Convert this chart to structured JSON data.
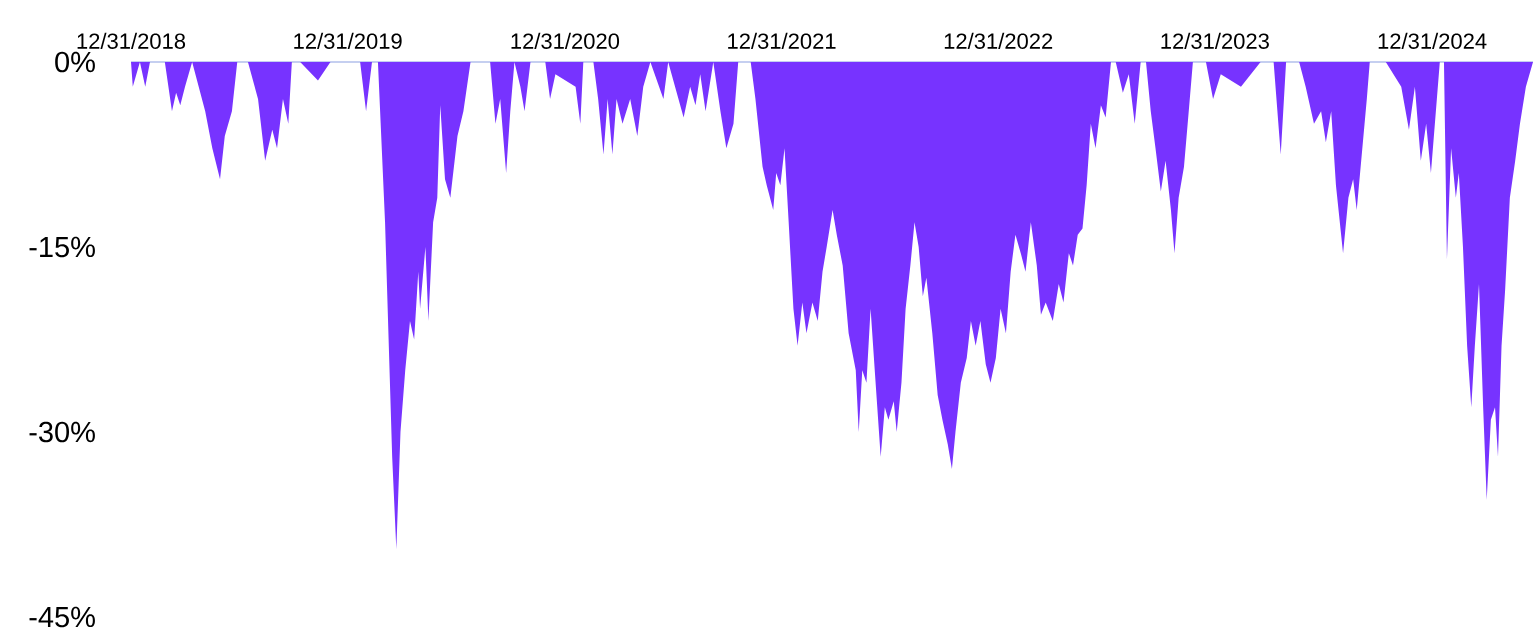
{
  "chart_data": {
    "type": "area",
    "color": "#7733ff",
    "xlim": [
      "2018-12-31",
      "2025-06-19"
    ],
    "ylim": [
      -45,
      0
    ],
    "xticks": [
      {
        "value": "2018-12-31",
        "label": "12/31/2018"
      },
      {
        "value": "2019-12-31",
        "label": "12/31/2019"
      },
      {
        "value": "2020-12-31",
        "label": "12/31/2020"
      },
      {
        "value": "2021-12-31",
        "label": "12/31/2021"
      },
      {
        "value": "2022-12-31",
        "label": "12/31/2022"
      },
      {
        "value": "2023-12-31",
        "label": "12/31/2023"
      },
      {
        "value": "2024-12-31",
        "label": "12/31/2024"
      }
    ],
    "yticks": [
      {
        "value": 0,
        "label": "0%"
      },
      {
        "value": -15,
        "label": "-15%"
      },
      {
        "value": -30,
        "label": "-30%"
      },
      {
        "value": -45,
        "label": "-45%"
      }
    ],
    "x": [
      "2018-12-31",
      "2019-01-03",
      "2019-01-15",
      "2019-01-24",
      "2019-02-01",
      "2019-02-26",
      "2019-03-10",
      "2019-03-17",
      "2019-03-24",
      "2019-04-01",
      "2019-04-13",
      "2019-05-05",
      "2019-05-17",
      "2019-05-30",
      "2019-06-07",
      "2019-06-19",
      "2019-06-28",
      "2019-07-16",
      "2019-08-02",
      "2019-08-14",
      "2019-08-26",
      "2019-09-03",
      "2019-09-13",
      "2019-09-22",
      "2019-09-28",
      "2019-10-12",
      "2019-11-11",
      "2019-12-02",
      "2020-01-21",
      "2020-01-31",
      "2020-02-10",
      "2020-02-20",
      "2020-03-03",
      "2020-03-15",
      "2020-03-22",
      "2020-03-29",
      "2020-04-06",
      "2020-04-14",
      "2020-04-21",
      "2020-04-28",
      "2020-05-01",
      "2020-05-10",
      "2020-05-15",
      "2020-05-23",
      "2020-05-30",
      "2020-06-04",
      "2020-06-12",
      "2020-06-21",
      "2020-07-03",
      "2020-07-13",
      "2020-07-25",
      "2020-08-27",
      "2020-09-05",
      "2020-09-13",
      "2020-09-23",
      "2020-09-30",
      "2020-10-07",
      "2020-10-17",
      "2020-10-24",
      "2020-11-03",
      "2020-11-28",
      "2020-12-06",
      "2020-12-15",
      "2021-01-18",
      "2021-01-26",
      "2021-01-31",
      "2021-02-17",
      "2021-02-25",
      "2021-03-06",
      "2021-03-13",
      "2021-03-21",
      "2021-03-28",
      "2021-04-07",
      "2021-04-20",
      "2021-05-02",
      "2021-05-12",
      "2021-05-24",
      "2021-06-15",
      "2021-06-23",
      "2021-07-19",
      "2021-07-30",
      "2021-08-08",
      "2021-08-16",
      "2021-08-25",
      "2021-09-07",
      "2021-09-19",
      "2021-09-29",
      "2021-10-11",
      "2021-10-19",
      "2021-11-09",
      "2021-11-17",
      "2021-11-29",
      "2021-12-06",
      "2021-12-17",
      "2021-12-22",
      "2021-12-29",
      "2022-01-05",
      "2022-01-12",
      "2022-01-20",
      "2022-01-27",
      "2022-02-04",
      "2022-02-11",
      "2022-02-21",
      "2022-03-02",
      "2022-03-10",
      "2022-03-17",
      "2022-03-27",
      "2022-04-03",
      "2022-04-13",
      "2022-04-23",
      "2022-05-05",
      "2022-05-10",
      "2022-05-16",
      "2022-05-23",
      "2022-05-30",
      "2022-06-06",
      "2022-06-16",
      "2022-06-23",
      "2022-06-29",
      "2022-07-08",
      "2022-07-13",
      "2022-07-21",
      "2022-07-28",
      "2022-08-05",
      "2022-08-12",
      "2022-08-19",
      "2022-08-26",
      "2022-09-01",
      "2022-09-11",
      "2022-09-20",
      "2022-09-28",
      "2022-10-07",
      "2022-10-14",
      "2022-10-20",
      "2022-10-29",
      "2022-11-08",
      "2022-11-15",
      "2022-11-23",
      "2022-12-01",
      "2022-12-10",
      "2022-12-18",
      "2022-12-27",
      "2023-01-04",
      "2023-01-13",
      "2023-01-21",
      "2023-01-29",
      "2023-02-07",
      "2023-02-15",
      "2023-02-24",
      "2023-03-06",
      "2023-03-13",
      "2023-03-21",
      "2023-04-02",
      "2023-04-12",
      "2023-04-20",
      "2023-04-29",
      "2023-05-06",
      "2023-05-14",
      "2023-05-22",
      "2023-05-29",
      "2023-06-05",
      "2023-06-13",
      "2023-06-22",
      "2023-06-30",
      "2023-07-09",
      "2023-07-17",
      "2023-07-29",
      "2023-08-08",
      "2023-08-18",
      "2023-08-28",
      "2023-09-06",
      "2023-09-14",
      "2023-09-22",
      "2023-10-01",
      "2023-10-09",
      "2023-10-18",
      "2023-10-24",
      "2023-10-31",
      "2023-11-09",
      "2023-11-17",
      "2023-11-24",
      "2023-12-16",
      "2023-12-28",
      "2024-01-10",
      "2024-02-13",
      "2024-03-17",
      "2024-04-08",
      "2024-04-20",
      "2024-04-29",
      "2024-05-21",
      "2024-06-01",
      "2024-06-15",
      "2024-06-27",
      "2024-07-05",
      "2024-07-14",
      "2024-07-22",
      "2024-08-03",
      "2024-08-12",
      "2024-08-20",
      "2024-08-26",
      "2024-09-12",
      "2024-09-17",
      "2024-10-14",
      "2024-11-09",
      "2024-11-22",
      "2024-12-02",
      "2024-12-12",
      "2024-12-21",
      "2024-12-29",
      "2025-01-08",
      "2025-01-13",
      "2025-01-20",
      "2025-01-25",
      "2025-02-01",
      "2025-02-09",
      "2025-02-14",
      "2025-02-21",
      "2025-02-28",
      "2025-03-07",
      "2025-03-13",
      "2025-03-20",
      "2025-03-27",
      "2025-04-02",
      "2025-04-09",
      "2025-04-16",
      "2025-04-21",
      "2025-04-27",
      "2025-05-03",
      "2025-05-11",
      "2025-05-20",
      "2025-05-28",
      "2025-06-07",
      "2025-06-19"
    ],
    "values": [
      0,
      -2,
      0,
      -2,
      0,
      0,
      -4,
      -2.5,
      -3.5,
      -2,
      0,
      -4,
      -7,
      -9.5,
      -6,
      -4,
      0,
      0,
      -3,
      -8,
      -5.5,
      -7,
      -3,
      -5,
      0,
      0,
      -1.5,
      0,
      0,
      -4,
      0,
      0,
      -13,
      -32,
      -39.5,
      -30,
      -25,
      -21,
      -22.5,
      -17,
      -20,
      -15,
      -21,
      -13,
      -11,
      -3.5,
      -9.5,
      -11,
      -6,
      -4,
      0,
      0,
      -5,
      -3,
      -9,
      -4,
      0,
      -2,
      -4,
      0,
      0,
      -3,
      -1,
      -2,
      -5,
      0,
      0,
      -3,
      -7.5,
      -3,
      -7.5,
      -3,
      -5,
      -3,
      -6,
      -2,
      0,
      -3,
      0,
      -4.5,
      -2,
      -3.5,
      -1,
      -4,
      0,
      -4,
      -7,
      -5,
      0,
      0,
      -3,
      -8.5,
      -10,
      -12,
      -9,
      -10,
      -7,
      -13,
      -20,
      -23,
      -19.5,
      -22,
      -19.5,
      -21,
      -17,
      -15,
      -12,
      -14,
      -16.5,
      -22,
      -25,
      -30,
      -25,
      -26,
      -20,
      -25,
      -32,
      -28,
      -29,
      -27.5,
      -30,
      -26,
      -20,
      -16.5,
      -13,
      -15,
      -19,
      -17.5,
      -22,
      -27,
      -29,
      -31,
      -33,
      -30,
      -26,
      -24,
      -21,
      -23,
      -21,
      -24.5,
      -26,
      -24,
      -20,
      -22,
      -17,
      -14,
      -15.5,
      -17,
      -13,
      -16.5,
      -20.5,
      -19.5,
      -21,
      -18,
      -19.5,
      -15.5,
      -16.5,
      -14,
      -13.5,
      -10,
      -5,
      -7,
      -3.5,
      -4.5,
      0,
      0,
      -2.5,
      -1,
      -5,
      0,
      0,
      -4,
      -7,
      -10.5,
      -8,
      -12,
      -15.5,
      -11,
      -8.5,
      -4,
      0,
      0,
      -3,
      -1,
      -2,
      0,
      0,
      -7.5,
      0,
      0,
      -2,
      -5,
      -4,
      -6.5,
      -4,
      -10,
      -15.5,
      -11,
      -9.5,
      -12,
      -3,
      0,
      0,
      -2,
      -5.5,
      -2,
      -8,
      -5,
      -9,
      -3,
      0,
      0,
      -16,
      -7,
      -11,
      -9,
      -15,
      -23,
      -28,
      -23,
      -18,
      -28,
      -35.5,
      -29,
      -28,
      -32,
      -23,
      -18.5,
      -11,
      -8,
      -5,
      -2,
      0
    ]
  }
}
